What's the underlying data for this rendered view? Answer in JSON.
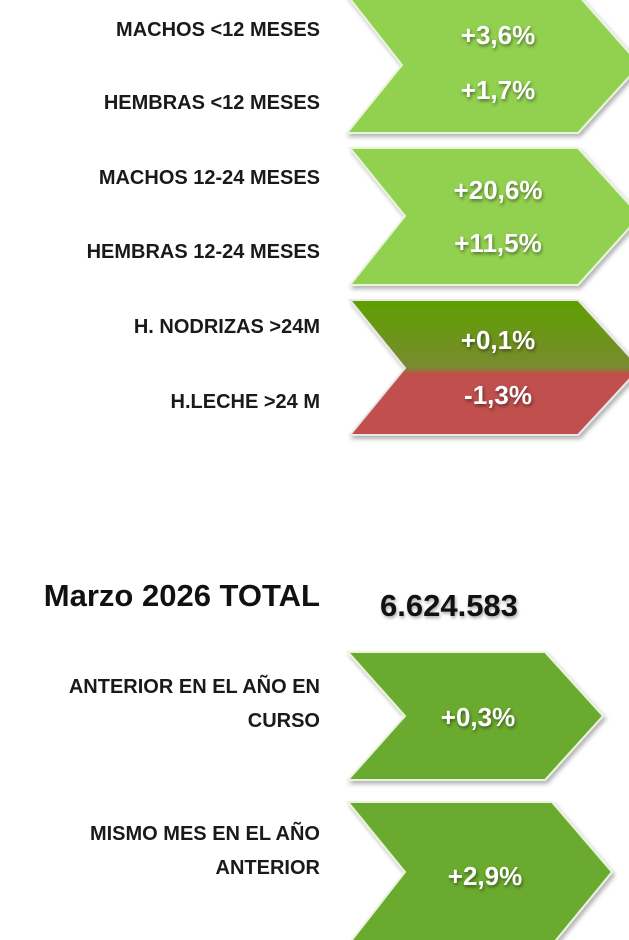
{
  "groups": [
    {
      "items": [
        {
          "label": "MACHOS <12 MESES",
          "value": "+3,6%"
        },
        {
          "label": "HEMBRAS <12 MESES",
          "value": "+1,7%"
        }
      ]
    },
    {
      "items": [
        {
          "label": "MACHOS 12-24 MESES",
          "value": "+20,6%"
        },
        {
          "label": "HEMBRAS 12-24 MESES",
          "value": "+11,5%"
        }
      ]
    },
    {
      "items": [
        {
          "label": "H. NODRIZAS >24M",
          "value": "+0,1%"
        },
        {
          "label": "H.LECHE >24 M",
          "value": "-1,3%"
        }
      ]
    }
  ],
  "total": {
    "label": "Marzo 2026  TOTAL",
    "value": "6.624.583"
  },
  "comparisons": [
    {
      "label": [
        "ANTERIOR EN EL AÑO EN",
        "CURSO"
      ],
      "value": "+0,3%"
    },
    {
      "label": [
        "MISMO MES EN EL AÑO",
        "ANTERIOR"
      ],
      "value": "+2,9%"
    }
  ]
}
